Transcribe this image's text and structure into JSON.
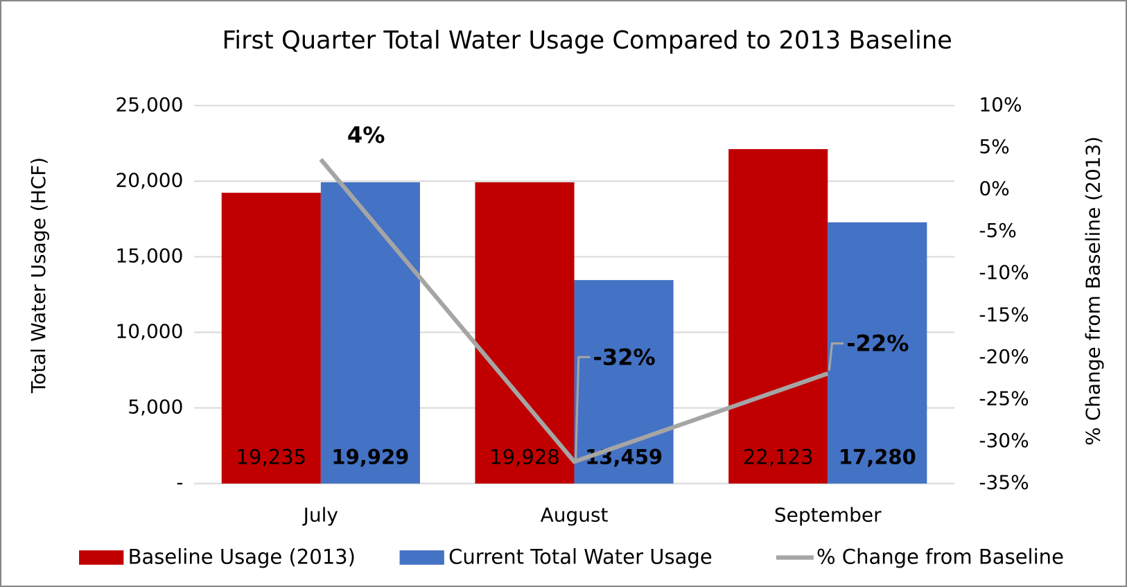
{
  "chart_data": {
    "type": "bar",
    "title": "First Quarter Total Water Usage Compared to 2013 Baseline",
    "y_label": "Total Water Usage (HCF)",
    "y2_label": "% Change from Baseline (2013)",
    "categories": [
      "July",
      "August",
      "September"
    ],
    "series": [
      {
        "name": "Baseline Usage (2013)",
        "type": "bar",
        "color": "#c00000",
        "values": [
          19235,
          19928,
          22123
        ],
        "value_labels": [
          "19,235",
          "19,928",
          "22,123"
        ]
      },
      {
        "name": "Current Total Water Usage",
        "type": "bar",
        "color": "#4472c4",
        "values": [
          19929,
          13459,
          17280
        ],
        "value_labels": [
          "19,929",
          "13,459",
          "17,280"
        ]
      },
      {
        "name": "% Change from Baseline",
        "type": "line",
        "axis": "y2",
        "color": "#a5a5a5",
        "values": [
          3.6,
          -32.4,
          -21.9
        ],
        "value_labels": [
          "4%",
          "-32%",
          "-22%"
        ]
      }
    ],
    "ylim": [
      0,
      25000
    ],
    "yticks": [
      {
        "value": 0,
        "label": "-"
      },
      {
        "value": 5000,
        "label": "5,000"
      },
      {
        "value": 10000,
        "label": "10,000"
      },
      {
        "value": 15000,
        "label": "15,000"
      },
      {
        "value": 20000,
        "label": "20,000"
      },
      {
        "value": 25000,
        "label": "25,000"
      }
    ],
    "y2lim": [
      -35,
      10
    ],
    "y2ticks": [
      {
        "value": -35,
        "label": "-35%"
      },
      {
        "value": -30,
        "label": "-30%"
      },
      {
        "value": -25,
        "label": "-25%"
      },
      {
        "value": -20,
        "label": "-20%"
      },
      {
        "value": -15,
        "label": "-15%"
      },
      {
        "value": -10,
        "label": "-10%"
      },
      {
        "value": -5,
        "label": "-5%"
      },
      {
        "value": 0,
        "label": "0%"
      },
      {
        "value": 5,
        "label": "5%"
      },
      {
        "value": 10,
        "label": "10%"
      }
    ],
    "grid": true,
    "legend": "bottom"
  }
}
